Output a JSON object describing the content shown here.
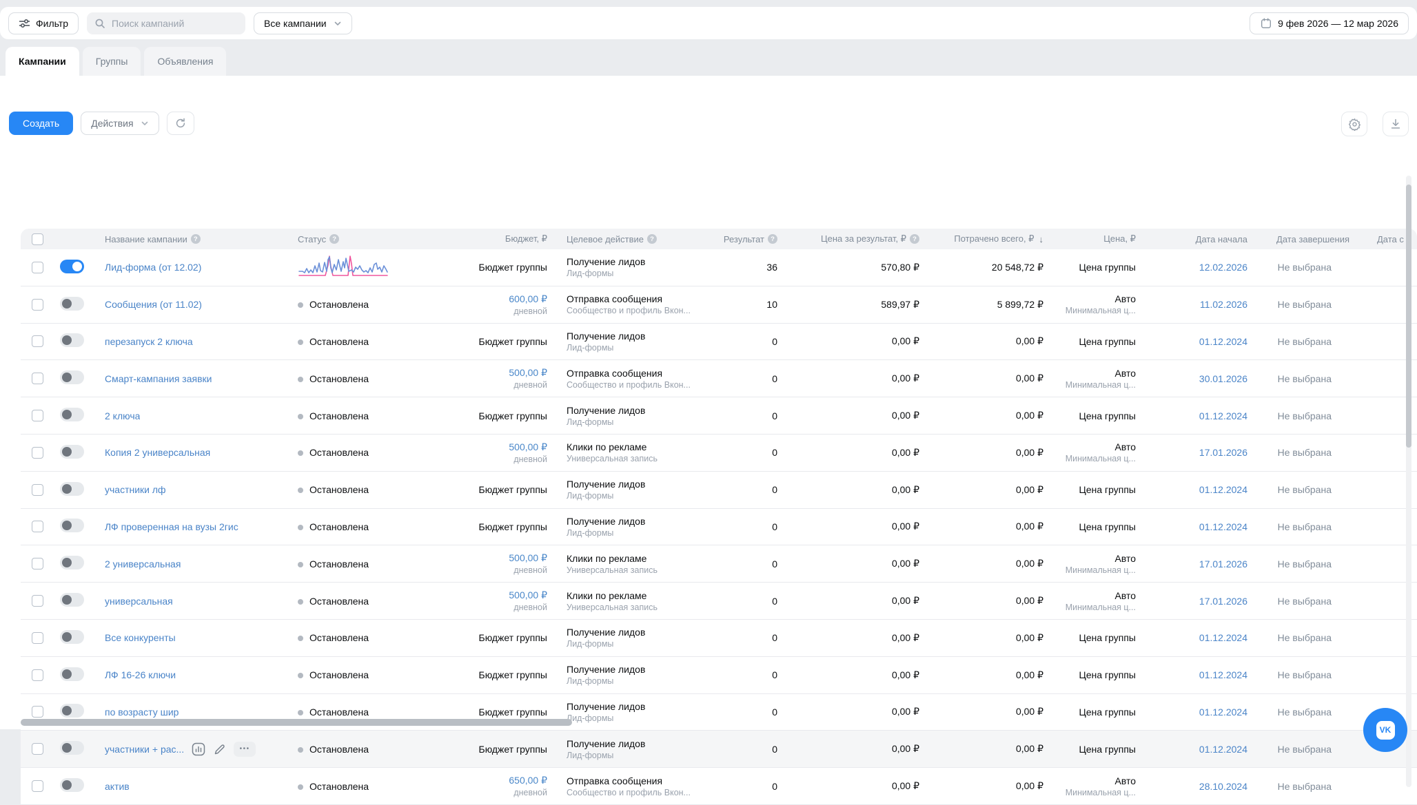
{
  "topbar": {
    "filter_label": "Фильтр",
    "search_placeholder": "Поиск кампаний",
    "scope_selector": "Все кампании",
    "date_range": "9 фев 2026 — 12 мар 2026"
  },
  "tabs": [
    {
      "label": "Кампании",
      "active": true
    },
    {
      "label": "Группы",
      "active": false
    },
    {
      "label": "Объявления",
      "active": false
    }
  ],
  "toolbar": {
    "create_label": "Создать",
    "actions_label": "Действия"
  },
  "table": {
    "headers": {
      "name": "Название кампании",
      "status": "Статус",
      "budget": "Бюджет, ₽",
      "goal": "Целевое действие",
      "result": "Результат",
      "cost_per_result": "Цена за результат, ₽",
      "spent": "Потрачено всего, ₽",
      "spent_sort": "↓",
      "price": "Цена, ₽",
      "start": "Дата начала",
      "end": "Дата завершения",
      "created": "Дата с"
    },
    "sparkline": {
      "pink": "2,31 40,31 44,16 46,3 48,18 51,31 73,31 76,3 78,14 80,31 130,31",
      "blue": "2,25 7,25 10,27 13,21 16,27 19,23 22,27 25,17 28,26 31,13 33,24 36,26 39,12 42,25 44,8 46,4 48,20 50,27 53,15 56,23 59,8 61,17 63,25 66,11 68,20 70,6 72,15 74,25 78,23 81,26 84,19 87,22 90,17 93,23 96,26 99,24 102,27 105,20 108,26 111,15 114,13 116,22 119,19 122,26 125,17 128,22 130,26"
    },
    "rows": [
      {
        "name": "Лид-форма (от 12.02)",
        "enabled": true,
        "sparkline": true,
        "status": "",
        "budget": "Бюджет группы",
        "budget_sub": "",
        "budget_blue": false,
        "goal": "Получение лидов",
        "goal_sub": "Лид-формы",
        "result": "36",
        "cost_per_result": "570,80 ₽",
        "spent": "20 548,72 ₽",
        "price": "Цена группы",
        "price_sub": "",
        "start_date": "12.02.2026",
        "end_date": "Не выбрана",
        "hovered": false
      },
      {
        "name": "Сообщения (от 11.02)",
        "enabled": false,
        "sparkline": false,
        "status": "Остановлена",
        "budget": "600,00 ₽",
        "budget_sub": "дневной",
        "budget_blue": true,
        "goal": "Отправка сообщения",
        "goal_sub": "Сообщество и профиль Вкон...",
        "result": "10",
        "cost_per_result": "589,97 ₽",
        "spent": "5 899,72 ₽",
        "price": "Авто",
        "price_sub": "Минимальная ц...",
        "start_date": "11.02.2026",
        "end_date": "Не выбрана",
        "hovered": false
      },
      {
        "name": "перезапуск 2 ключа",
        "enabled": false,
        "sparkline": false,
        "status": "Остановлена",
        "budget": "Бюджет группы",
        "budget_sub": "",
        "budget_blue": false,
        "goal": "Получение лидов",
        "goal_sub": "Лид-формы",
        "result": "0",
        "cost_per_result": "0,00 ₽",
        "spent": "0,00 ₽",
        "price": "Цена группы",
        "price_sub": "",
        "start_date": "01.12.2024",
        "end_date": "Не выбрана",
        "hovered": false
      },
      {
        "name": "Смарт-кампания заявки",
        "enabled": false,
        "sparkline": false,
        "status": "Остановлена",
        "budget": "500,00 ₽",
        "budget_sub": "дневной",
        "budget_blue": true,
        "goal": "Отправка сообщения",
        "goal_sub": "Сообщество и профиль Вкон...",
        "result": "0",
        "cost_per_result": "0,00 ₽",
        "spent": "0,00 ₽",
        "price": "Авто",
        "price_sub": "Минимальная ц...",
        "start_date": "30.01.2026",
        "end_date": "Не выбрана",
        "hovered": false
      },
      {
        "name": "2 ключа",
        "enabled": false,
        "sparkline": false,
        "status": "Остановлена",
        "budget": "Бюджет группы",
        "budget_sub": "",
        "budget_blue": false,
        "goal": "Получение лидов",
        "goal_sub": "Лид-формы",
        "result": "0",
        "cost_per_result": "0,00 ₽",
        "spent": "0,00 ₽",
        "price": "Цена группы",
        "price_sub": "",
        "start_date": "01.12.2024",
        "end_date": "Не выбрана",
        "hovered": false
      },
      {
        "name": "Копия 2 универсальная",
        "enabled": false,
        "sparkline": false,
        "status": "Остановлена",
        "budget": "500,00 ₽",
        "budget_sub": "дневной",
        "budget_blue": true,
        "goal": "Клики по рекламе",
        "goal_sub": "Универсальная запись",
        "result": "0",
        "cost_per_result": "0,00 ₽",
        "spent": "0,00 ₽",
        "price": "Авто",
        "price_sub": "Минимальная ц...",
        "start_date": "17.01.2026",
        "end_date": "Не выбрана",
        "hovered": false
      },
      {
        "name": "участники лф",
        "enabled": false,
        "sparkline": false,
        "status": "Остановлена",
        "budget": "Бюджет группы",
        "budget_sub": "",
        "budget_blue": false,
        "goal": "Получение лидов",
        "goal_sub": "Лид-формы",
        "result": "0",
        "cost_per_result": "0,00 ₽",
        "spent": "0,00 ₽",
        "price": "Цена группы",
        "price_sub": "",
        "start_date": "01.12.2024",
        "end_date": "Не выбрана",
        "hovered": false
      },
      {
        "name": "ЛФ проверенная на вузы 2гис",
        "enabled": false,
        "sparkline": false,
        "status": "Остановлена",
        "budget": "Бюджет группы",
        "budget_sub": "",
        "budget_blue": false,
        "goal": "Получение лидов",
        "goal_sub": "Лид-формы",
        "result": "0",
        "cost_per_result": "0,00 ₽",
        "spent": "0,00 ₽",
        "price": "Цена группы",
        "price_sub": "",
        "start_date": "01.12.2024",
        "end_date": "Не выбрана",
        "hovered": false
      },
      {
        "name": "2 универсальная",
        "enabled": false,
        "sparkline": false,
        "status": "Остановлена",
        "budget": "500,00 ₽",
        "budget_sub": "дневной",
        "budget_blue": true,
        "goal": "Клики по рекламе",
        "goal_sub": "Универсальная запись",
        "result": "0",
        "cost_per_result": "0,00 ₽",
        "spent": "0,00 ₽",
        "price": "Авто",
        "price_sub": "Минимальная ц...",
        "start_date": "17.01.2026",
        "end_date": "Не выбрана",
        "hovered": false
      },
      {
        "name": "универсальная",
        "enabled": false,
        "sparkline": false,
        "status": "Остановлена",
        "budget": "500,00 ₽",
        "budget_sub": "дневной",
        "budget_blue": true,
        "goal": "Клики по рекламе",
        "goal_sub": "Универсальная запись",
        "result": "0",
        "cost_per_result": "0,00 ₽",
        "spent": "0,00 ₽",
        "price": "Авто",
        "price_sub": "Минимальная ц...",
        "start_date": "17.01.2026",
        "end_date": "Не выбрана",
        "hovered": false
      },
      {
        "name": "Все конкуренты",
        "enabled": false,
        "sparkline": false,
        "status": "Остановлена",
        "budget": "Бюджет группы",
        "budget_sub": "",
        "budget_blue": false,
        "goal": "Получение лидов",
        "goal_sub": "Лид-формы",
        "result": "0",
        "cost_per_result": "0,00 ₽",
        "spent": "0,00 ₽",
        "price": "Цена группы",
        "price_sub": "",
        "start_date": "01.12.2024",
        "end_date": "Не выбрана",
        "hovered": false
      },
      {
        "name": "ЛФ 16-26 ключи",
        "enabled": false,
        "sparkline": false,
        "status": "Остановлена",
        "budget": "Бюджет группы",
        "budget_sub": "",
        "budget_blue": false,
        "goal": "Получение лидов",
        "goal_sub": "Лид-формы",
        "result": "0",
        "cost_per_result": "0,00 ₽",
        "spent": "0,00 ₽",
        "price": "Цена группы",
        "price_sub": "",
        "start_date": "01.12.2024",
        "end_date": "Не выбрана",
        "hovered": false
      },
      {
        "name": "по возрасту шир",
        "enabled": false,
        "sparkline": false,
        "status": "Остановлена",
        "budget": "Бюджет группы",
        "budget_sub": "",
        "budget_blue": false,
        "goal": "Получение лидов",
        "goal_sub": "Лид-формы",
        "result": "0",
        "cost_per_result": "0,00 ₽",
        "spent": "0,00 ₽",
        "price": "Цена группы",
        "price_sub": "",
        "start_date": "01.12.2024",
        "end_date": "Не выбрана",
        "hovered": false
      },
      {
        "name": "участники + рас...",
        "enabled": false,
        "sparkline": false,
        "status": "Остановлена",
        "budget": "Бюджет группы",
        "budget_sub": "",
        "budget_blue": false,
        "goal": "Получение лидов",
        "goal_sub": "Лид-формы",
        "result": "0",
        "cost_per_result": "0,00 ₽",
        "spent": "0,00 ₽",
        "price": "Цена группы",
        "price_sub": "",
        "start_date": "01.12.2024",
        "end_date": "Не выбрана",
        "hovered": true
      },
      {
        "name": "актив",
        "enabled": false,
        "sparkline": false,
        "status": "Остановлена",
        "budget": "650,00 ₽",
        "budget_sub": "дневной",
        "budget_blue": true,
        "goal": "Отправка сообщения",
        "goal_sub": "Сообщество и профиль Вкон...",
        "result": "0",
        "cost_per_result": "0,00 ₽",
        "spent": "0,00 ₽",
        "price": "Авто",
        "price_sub": "Минимальная ц...",
        "start_date": "28.10.2024",
        "end_date": "Не выбрана",
        "hovered": false
      }
    ]
  },
  "chat": {
    "label": "VK"
  }
}
